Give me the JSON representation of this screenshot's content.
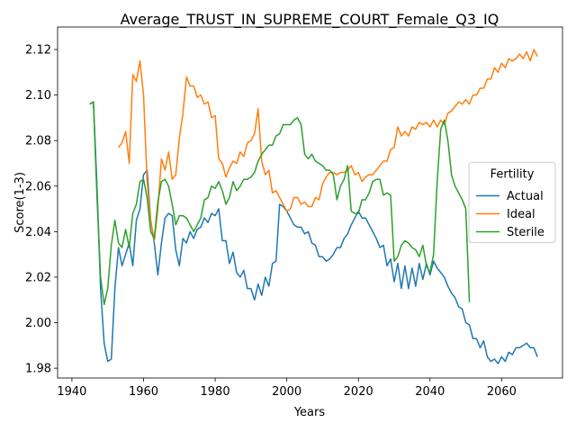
{
  "chart_data": {
    "type": "line",
    "title": "Average_TRUST_IN_SUPREME_COURT_Female_Q3_IQ",
    "xlabel": "Years",
    "ylabel": "Score(1-3)",
    "legend_title": "Fertility",
    "legend": "center right",
    "xlim": [
      1936,
      2077
    ],
    "ylim": [
      1.9757,
      2.1299
    ],
    "xticks": [
      1940,
      1960,
      1980,
      2000,
      2020,
      2040,
      2060
    ],
    "yticks": [
      1.98,
      {
        "value": 2,
        "label": "2.00"
      },
      2.02,
      2.04,
      2.06,
      2.08,
      {
        "value": 2.1,
        "label": "2.10"
      },
      2.12
    ],
    "x": [
      1945,
      1946,
      1947,
      1948,
      1949,
      1950,
      1951,
      1952,
      1953,
      1954,
      1955,
      1956,
      1957,
      1958,
      1959,
      1960,
      1961,
      1962,
      1963,
      1964,
      1965,
      1966,
      1967,
      1968,
      1969,
      1970,
      1971,
      1972,
      1973,
      1974,
      1975,
      1976,
      1977,
      1978,
      1979,
      1980,
      1981,
      1982,
      1983,
      1984,
      1985,
      1986,
      1987,
      1988,
      1989,
      1990,
      1991,
      1992,
      1993,
      1994,
      1995,
      1996,
      1997,
      1998,
      1999,
      2000,
      2001,
      2002,
      2003,
      2004,
      2005,
      2006,
      2007,
      2008,
      2009,
      2010,
      2011,
      2012,
      2013,
      2014,
      2015,
      2016,
      2017,
      2018,
      2019,
      2020,
      2021,
      2022,
      2023,
      2024,
      2025,
      2026,
      2027,
      2028,
      2029,
      2030,
      2031,
      2032,
      2033,
      2034,
      2035,
      2036,
      2037,
      2038,
      2039,
      2040,
      2041,
      2042,
      2043,
      2044,
      2045,
      2046,
      2047,
      2048,
      2049,
      2050,
      2051,
      2052,
      2053,
      2054,
      2055,
      2056,
      2057,
      2058,
      2059,
      2060,
      2061,
      2062,
      2063,
      2064,
      2065,
      2066,
      2067,
      2068,
      2069,
      2070
    ],
    "series": [
      {
        "name": "Actual",
        "color": "#1f77b4",
        "values": [
          2.096,
          2.097,
          2.06,
          2.015,
          1.991,
          1.983,
          1.984,
          2.015,
          2.033,
          2.025,
          2.03,
          2.035,
          2.025,
          2.045,
          2.05,
          2.065,
          2.067,
          2.045,
          2.035,
          2.021,
          2.035,
          2.046,
          2.048,
          2.047,
          2.032,
          2.025,
          2.037,
          2.035,
          2.04,
          2.037,
          2.041,
          2.042,
          2.046,
          2.044,
          2.048,
          2.047,
          2.05,
          2.036,
          2.036,
          2.026,
          2.031,
          2.022,
          2.02,
          2.023,
          2.015,
          2.015,
          2.01,
          2.017,
          2.012,
          2.02,
          2.016,
          2.026,
          2.027,
          2.052,
          2.051,
          2.049,
          2.046,
          2.043,
          2.042,
          2.042,
          2.039,
          2.04,
          2.035,
          2.034,
          2.029,
          2.029,
          2.027,
          2.028,
          2.03,
          2.033,
          2.033,
          2.037,
          2.039,
          2.043,
          2.046,
          2.049,
          2.046,
          2.046,
          2.043,
          2.04,
          2.037,
          2.033,
          2.034,
          2.025,
          2.028,
          2.018,
          2.026,
          2.015,
          2.025,
          2.015,
          2.024,
          2.016,
          2.026,
          2.019,
          2.026,
          2.021,
          2.027,
          2.024,
          2.022,
          2.02,
          2.016,
          2.013,
          2.011,
          2.007,
          2.006,
          2.0,
          1.999,
          1.993,
          1.993,
          1.989,
          1.992,
          1.985,
          1.983,
          1.984,
          1.982,
          1.985,
          1.983,
          1.987,
          1.986,
          1.989,
          1.989,
          1.99,
          1.991,
          1.989,
          1.989,
          1.985
        ]
      },
      {
        "name": "Ideal",
        "color": "#ff7f0e",
        "values": [
          null,
          null,
          null,
          null,
          null,
          null,
          null,
          null,
          2.077,
          2.079,
          2.084,
          2.07,
          2.109,
          2.106,
          2.115,
          2.1,
          2.062,
          2.045,
          2.036,
          2.05,
          2.072,
          2.067,
          2.075,
          2.063,
          2.065,
          2.081,
          2.092,
          2.108,
          2.104,
          2.104,
          2.099,
          2.1,
          2.096,
          2.097,
          2.09,
          2.091,
          2.072,
          2.07,
          2.064,
          2.068,
          2.071,
          2.07,
          2.075,
          2.073,
          2.079,
          2.08,
          2.083,
          2.094,
          2.071,
          2.065,
          2.067,
          2.057,
          2.058,
          2.055,
          2.052,
          2.049,
          2.05,
          2.055,
          2.055,
          2.052,
          2.053,
          2.051,
          2.051,
          2.055,
          2.054,
          2.061,
          2.064,
          2.066,
          2.066,
          2.065,
          2.066,
          2.066,
          2.067,
          2.069,
          2.065,
          2.066,
          2.062,
          2.064,
          2.065,
          2.065,
          2.067,
          2.069,
          2.071,
          2.071,
          2.076,
          2.077,
          2.086,
          2.082,
          2.084,
          2.082,
          2.086,
          2.085,
          2.088,
          2.087,
          2.088,
          2.086,
          2.089,
          2.086,
          2.089,
          2.087,
          2.092,
          2.093,
          2.095,
          2.097,
          2.096,
          2.098,
          2.096,
          2.1,
          2.1,
          2.103,
          2.103,
          2.107,
          2.107,
          2.112,
          2.11,
          2.114,
          2.112,
          2.116,
          2.115,
          2.116,
          2.118,
          2.116,
          2.119,
          2.115,
          2.12,
          2.117
        ]
      },
      {
        "name": "Sterile",
        "color": "#2ca02c",
        "values": [
          2.096,
          2.097,
          2.055,
          2.02,
          2.008,
          2.015,
          2.034,
          2.045,
          2.035,
          2.033,
          2.041,
          2.033,
          2.048,
          2.052,
          2.062,
          2.063,
          2.055,
          2.04,
          2.037,
          2.053,
          2.062,
          2.063,
          2.06,
          2.052,
          2.043,
          2.047,
          2.047,
          2.046,
          2.043,
          2.04,
          2.043,
          2.046,
          2.054,
          2.055,
          2.06,
          2.059,
          2.062,
          2.058,
          2.052,
          2.055,
          2.062,
          2.058,
          2.06,
          2.063,
          2.063,
          2.064,
          2.066,
          2.071,
          2.074,
          2.076,
          2.078,
          2.078,
          2.082,
          2.083,
          2.087,
          2.087,
          2.087,
          2.089,
          2.09,
          2.087,
          2.074,
          2.072,
          2.074,
          2.071,
          2.07,
          2.069,
          2.067,
          2.067,
          2.065,
          2.054,
          2.06,
          2.063,
          2.069,
          2.049,
          2.048,
          2.048,
          2.054,
          2.054,
          2.057,
          2.062,
          2.063,
          2.063,
          2.056,
          2.057,
          2.056,
          2.027,
          2.029,
          2.034,
          2.036,
          2.035,
          2.033,
          2.032,
          2.029,
          2.034,
          2.025,
          2.022,
          2.03,
          2.062,
          2.085,
          2.089,
          2.08,
          2.065,
          2.06,
          2.057,
          2.054,
          2.05,
          2.009,
          null,
          null,
          null,
          null,
          null,
          null,
          null,
          null,
          null,
          null,
          null,
          null,
          null,
          null,
          null,
          null,
          null,
          null,
          null
        ]
      }
    ]
  }
}
